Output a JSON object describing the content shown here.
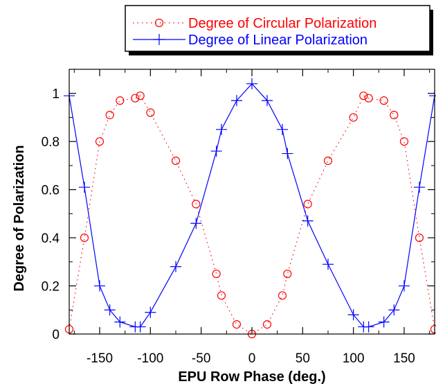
{
  "chart_data": {
    "type": "line",
    "title": "",
    "xlabel": "EPU Row Phase (deg.)",
    "ylabel": "Degree of Polarization",
    "xlim": [
      -180,
      180
    ],
    "ylim": [
      0,
      1.1
    ],
    "xticks": [
      -150,
      -100,
      -50,
      0,
      50,
      100,
      150
    ],
    "yticks": [
      0,
      0.2,
      0.4,
      0.6,
      0.8,
      1
    ],
    "grid": false,
    "legend_position": "top-right",
    "series": [
      {
        "name": "Degree of Circular Polarization",
        "color": "#ff0000",
        "line_style": "dotted",
        "marker": "circle",
        "points": [
          [
            -180,
            0.02
          ],
          [
            -165,
            0.4
          ],
          [
            -150,
            0.8
          ],
          [
            -140,
            0.91
          ],
          [
            -130,
            0.97
          ],
          [
            -115,
            0.98
          ],
          [
            -110,
            0.99
          ],
          [
            -100,
            0.92
          ],
          [
            -75,
            0.72
          ],
          [
            -55,
            0.54
          ],
          [
            -35,
            0.25
          ],
          [
            -30,
            0.16
          ],
          [
            -15,
            0.04
          ],
          [
            0,
            0.0
          ],
          [
            15,
            0.04
          ],
          [
            30,
            0.16
          ],
          [
            35,
            0.25
          ],
          [
            55,
            0.54
          ],
          [
            75,
            0.72
          ],
          [
            100,
            0.9
          ],
          [
            110,
            0.99
          ],
          [
            115,
            0.98
          ],
          [
            130,
            0.97
          ],
          [
            140,
            0.91
          ],
          [
            150,
            0.8
          ],
          [
            165,
            0.4
          ],
          [
            180,
            0.02
          ]
        ]
      },
      {
        "name": "Degree of Linear Polarization",
        "color": "#0000ff",
        "line_style": "solid",
        "marker": "plus",
        "points": [
          [
            -180,
            0.99
          ],
          [
            -165,
            0.61
          ],
          [
            -150,
            0.2
          ],
          [
            -140,
            0.1
          ],
          [
            -130,
            0.05
          ],
          [
            -115,
            0.03
          ],
          [
            -110,
            0.03
          ],
          [
            -100,
            0.09
          ],
          [
            -75,
            0.28
          ],
          [
            -55,
            0.46
          ],
          [
            -35,
            0.76
          ],
          [
            -30,
            0.85
          ],
          [
            -15,
            0.97
          ],
          [
            0,
            1.04
          ],
          [
            15,
            0.97
          ],
          [
            30,
            0.85
          ],
          [
            35,
            0.75
          ],
          [
            55,
            0.47
          ],
          [
            75,
            0.29
          ],
          [
            100,
            0.08
          ],
          [
            110,
            0.03
          ],
          [
            115,
            0.03
          ],
          [
            130,
            0.05
          ],
          [
            140,
            0.1
          ],
          [
            150,
            0.2
          ],
          [
            165,
            0.61
          ],
          [
            180,
            0.99
          ]
        ]
      }
    ]
  }
}
